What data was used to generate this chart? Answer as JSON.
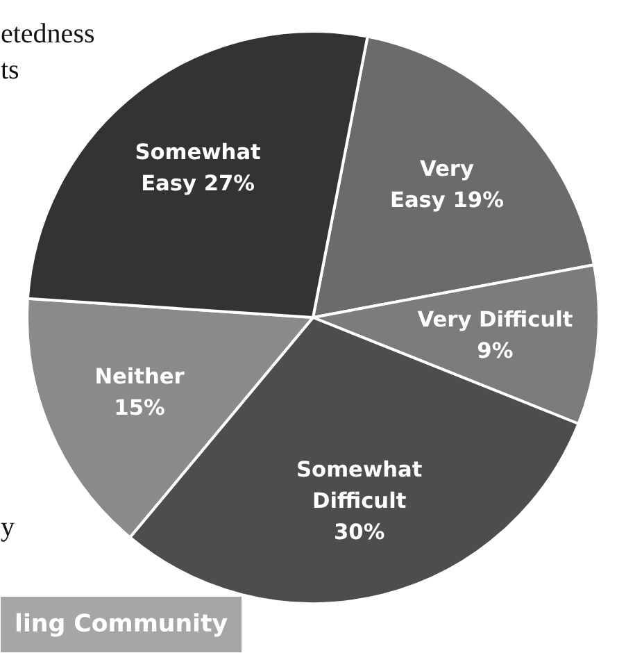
{
  "chart_data": {
    "type": "pie",
    "categories": [
      "Very\nEasy",
      "Very Difficult",
      "Somewhat\nDifficult",
      "Neither",
      "Somewhat\nEasy"
    ],
    "values": [
      19,
      9,
      30,
      15,
      27
    ],
    "colors": [
      "#6b6b6b",
      "#7c7c7c",
      "#4d4d4d",
      "#8a8a8a",
      "#333333"
    ],
    "value_labels": [
      "19%",
      "9%",
      "30%",
      "15%",
      "27%"
    ],
    "annotations": [
      "etedness",
      "ts",
      "y",
      "ling Community"
    ]
  }
}
